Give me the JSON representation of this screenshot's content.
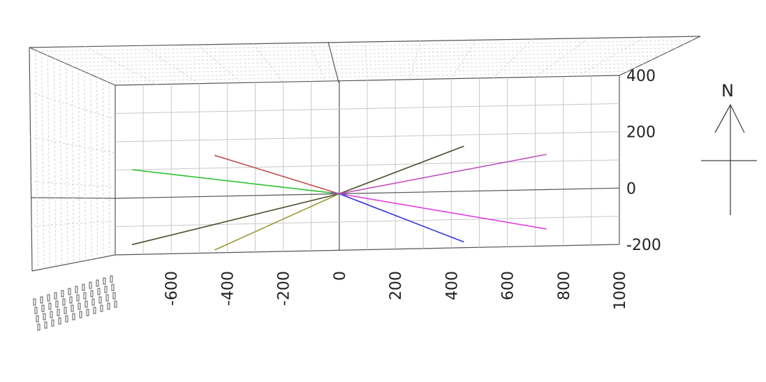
{
  "chart_data": {
    "type": "line",
    "title": "",
    "xlabel": "",
    "ylabel": "",
    "grid": true,
    "x_ticks": [
      -600,
      -400,
      -200,
      0,
      200,
      400,
      600,
      800,
      1000
    ],
    "y_ticks": [
      -200,
      0,
      200,
      400
    ],
    "xlim": [
      -800,
      1000
    ],
    "ylim": [
      -200,
      400
    ],
    "north_arrow": "N",
    "series": [
      {
        "color": "#2ec02e",
        "points": [
          [
            -740,
            100
          ],
          [
            0,
            0
          ]
        ]
      },
      {
        "color": "#c0504d",
        "points": [
          [
            -445,
            145
          ],
          [
            0,
            0
          ]
        ]
      },
      {
        "color": "#4a4a2a",
        "points": [
          [
            -740,
            -165
          ],
          [
            0,
            0
          ]
        ]
      },
      {
        "color": "#9a9a3a",
        "points": [
          [
            -445,
            -190
          ],
          [
            0,
            0
          ]
        ]
      },
      {
        "color": "#4a4a2a",
        "points": [
          [
            0,
            0
          ],
          [
            445,
            160
          ]
        ]
      },
      {
        "color": "#c050c0",
        "points": [
          [
            0,
            0
          ],
          [
            740,
            125
          ]
        ]
      },
      {
        "color": "#e040e0",
        "points": [
          [
            0,
            0
          ],
          [
            740,
            -140
          ]
        ]
      },
      {
        "color": "#3030e0",
        "points": [
          [
            0,
            0
          ],
          [
            445,
            -180
          ]
        ]
      },
      {
        "color": "#9a50c8",
        "points": [
          [
            -30,
            5
          ],
          [
            30,
            -5
          ]
        ]
      }
    ]
  }
}
